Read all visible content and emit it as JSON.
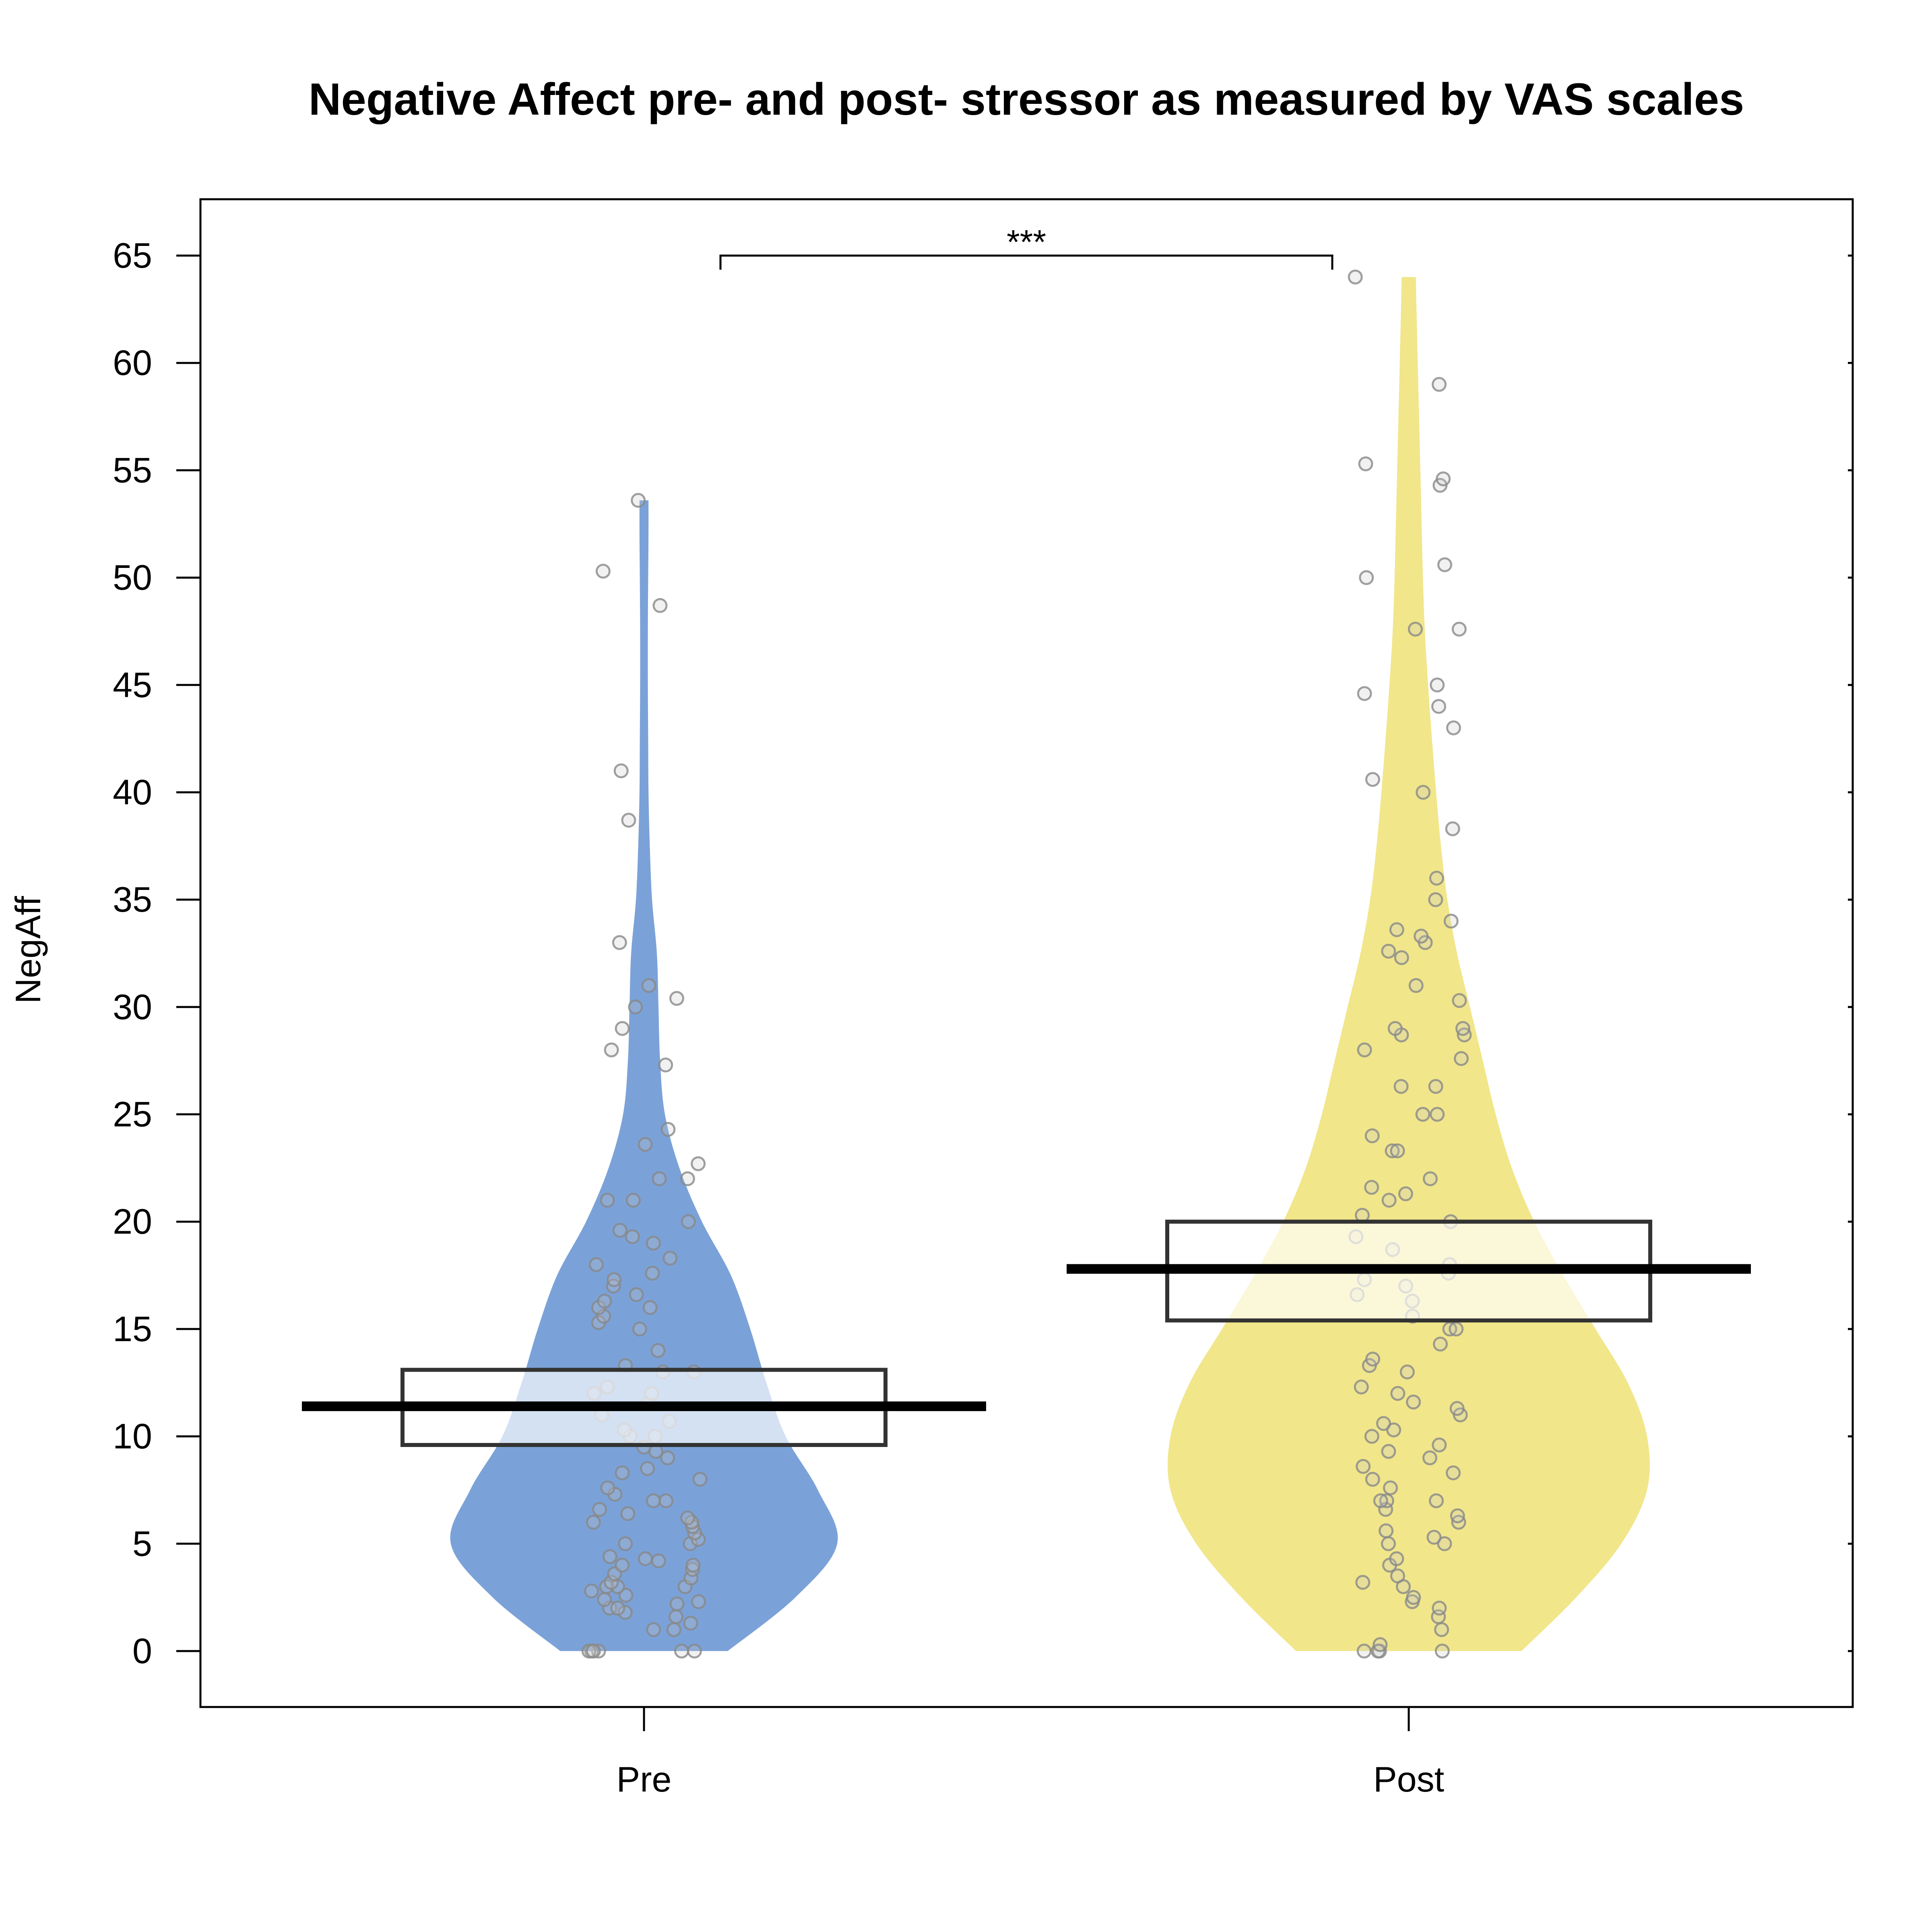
{
  "chart_data": {
    "type": "violin",
    "title": "Negative Affect pre- and post- stressor as measured by VAS scales",
    "xlabel": "",
    "ylabel": "NegAff",
    "ylim": [
      -2.5,
      67.7
    ],
    "yticks": [
      0,
      5,
      10,
      15,
      20,
      25,
      30,
      35,
      40,
      45,
      50,
      55,
      60,
      65
    ],
    "categories": [
      "Pre",
      "Post"
    ],
    "significance": {
      "label": "***",
      "between": [
        "Pre",
        "Post"
      ],
      "y": 65
    },
    "colors": {
      "Pre": "#7ba2d8",
      "Post": "#f1e68a",
      "points": "#888888",
      "mean_line": "#000000",
      "box": "#333333"
    },
    "series": [
      {
        "category": "Pre",
        "mean": 11.4,
        "ci": [
          9.6,
          13.1
        ],
        "min": 0,
        "max": 53.6,
        "density": [
          [
            0.0,
            0.26
          ],
          [
            2.5,
            0.47
          ],
          [
            5.0,
            0.6
          ],
          [
            7.5,
            0.54
          ],
          [
            10.0,
            0.44
          ],
          [
            12.5,
            0.38
          ],
          [
            15.0,
            0.33
          ],
          [
            17.5,
            0.27
          ],
          [
            20.0,
            0.18
          ],
          [
            22.5,
            0.11
          ],
          [
            25.0,
            0.065
          ],
          [
            27.5,
            0.05
          ],
          [
            30.0,
            0.045
          ],
          [
            32.5,
            0.04
          ],
          [
            35.0,
            0.025
          ],
          [
            37.5,
            0.018
          ],
          [
            40.0,
            0.014
          ],
          [
            42.5,
            0.013
          ],
          [
            45.0,
            0.012
          ],
          [
            47.5,
            0.012
          ],
          [
            50.0,
            0.013
          ],
          [
            52.0,
            0.014
          ],
          [
            53.6,
            0.014
          ]
        ],
        "points": [
          0,
          0,
          0,
          0,
          0,
          0,
          1,
          1,
          1.3,
          1.6,
          1.8,
          2,
          2,
          2.2,
          2.3,
          2.4,
          2.6,
          2.8,
          3,
          3,
          3,
          3.2,
          3.4,
          3.6,
          3.8,
          4,
          4,
          4.2,
          4.3,
          4.4,
          5,
          5,
          5.2,
          5.5,
          5.8,
          6,
          6,
          6.2,
          6.4,
          6.6,
          7,
          7,
          7.3,
          7.6,
          8,
          8.3,
          8.5,
          9,
          9.3,
          9.5,
          10,
          10,
          10.3,
          10.7,
          11,
          11.5,
          12,
          12,
          12.3,
          13,
          13,
          13.3,
          14,
          15,
          15.3,
          15.6,
          16,
          16,
          16.3,
          16.6,
          17,
          17.3,
          17.6,
          18,
          18.3,
          19,
          19.3,
          19.6,
          20,
          21,
          21,
          22,
          22,
          22.7,
          23.6,
          24.3,
          27.3,
          28,
          29,
          30,
          30.4,
          31,
          33,
          38.7,
          41,
          48.7,
          50.3,
          53.6
        ]
      },
      {
        "category": "Post",
        "mean": 17.8,
        "ci": [
          15.4,
          20.0
        ],
        "min": 0,
        "max": 64,
        "density": [
          [
            0.0,
            0.35
          ],
          [
            2.5,
            0.52
          ],
          [
            5.0,
            0.66
          ],
          [
            7.5,
            0.74
          ],
          [
            10.0,
            0.74
          ],
          [
            12.5,
            0.68
          ],
          [
            15.0,
            0.58
          ],
          [
            17.5,
            0.48
          ],
          [
            20.0,
            0.39
          ],
          [
            22.5,
            0.32
          ],
          [
            25.0,
            0.27
          ],
          [
            27.5,
            0.23
          ],
          [
            30.0,
            0.19
          ],
          [
            32.5,
            0.15
          ],
          [
            35.0,
            0.12
          ],
          [
            37.5,
            0.1
          ],
          [
            40.0,
            0.085
          ],
          [
            42.5,
            0.072
          ],
          [
            45.0,
            0.06
          ],
          [
            47.5,
            0.05
          ],
          [
            50.0,
            0.044
          ],
          [
            52.5,
            0.04
          ],
          [
            55.0,
            0.036
          ],
          [
            57.5,
            0.032
          ],
          [
            60.0,
            0.028
          ],
          [
            62.5,
            0.024
          ],
          [
            64.0,
            0.022
          ]
        ],
        "points": [
          0,
          0,
          0,
          0,
          0.3,
          1,
          1.6,
          2,
          2.3,
          2.5,
          3,
          3.2,
          3.5,
          4,
          4.3,
          5,
          5,
          5.3,
          5.6,
          6,
          6.3,
          6.6,
          7,
          7,
          7,
          7.6,
          8,
          8.3,
          8.6,
          9,
          9.3,
          9.6,
          10,
          10.3,
          10.6,
          11,
          11.3,
          11.6,
          12,
          12.3,
          13,
          13.3,
          13.6,
          14.3,
          15,
          15,
          15.6,
          16.3,
          16.6,
          17,
          17.3,
          17.6,
          18,
          18.7,
          19.3,
          20,
          20.3,
          21,
          21.3,
          21.6,
          22,
          23.3,
          23.3,
          24,
          25,
          25,
          26.3,
          26.3,
          27.6,
          28,
          28.7,
          28.7,
          29,
          29,
          30.3,
          31,
          32.3,
          32.6,
          33,
          33.3,
          33.6,
          34,
          35,
          36,
          38.3,
          40,
          40.6,
          43,
          44,
          44.6,
          45,
          47.6,
          47.6,
          50,
          50.6,
          54.3,
          54.6,
          55.3,
          59,
          64
        ]
      }
    ]
  }
}
